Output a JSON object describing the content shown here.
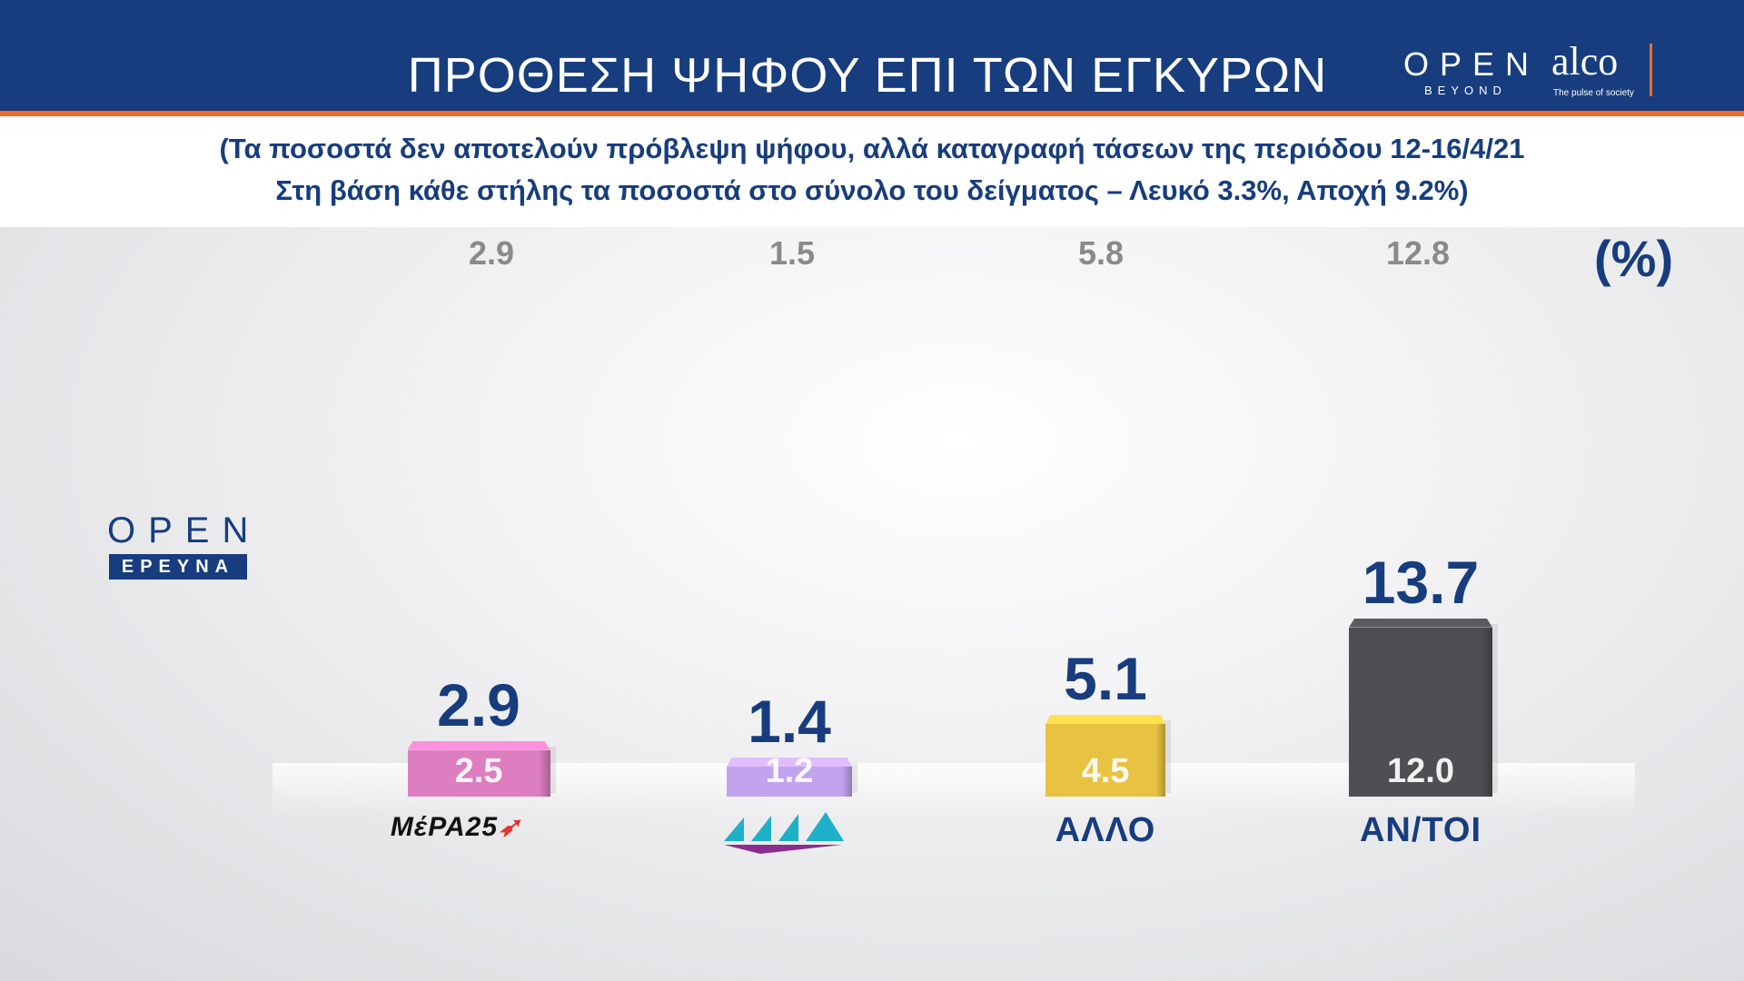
{
  "header": {
    "title": "ΠΡΟΘΕΣΗ ΨΗΦΟΥ ΕΠΙ ΤΩΝ ΕΓΚΥΡΩΝ",
    "brand_open": "OPEN",
    "brand_beyond": "BEYOND",
    "brand_alco": "alco",
    "brand_pulse": "The pulse of society"
  },
  "subtitle": {
    "line1": "(Τα ποσοστά δεν αποτελούν πρόβλεψη ψήφου, αλλά καταγραφή τάσεων της περιόδου 12-16/4/21",
    "line2": "Στη βάση κάθε στήλης τα ποσοστά στο σύνολο του δείγματος – Λευκό 3.3%, Αποχή 9.2%)"
  },
  "logo": {
    "open": "OPEN",
    "ereyna": "ΕΡΕΥΝΑ"
  },
  "colors": {
    "header": "#173d7e",
    "accent": "#f26b22",
    "text": "#173d7e"
  },
  "chart_data": {
    "type": "bar",
    "unit": "(%)",
    "categories": [
      "ΜέΡΑ25",
      "",
      "ΑΛΛΟ",
      "ΑΝ/ΤΟΙ"
    ],
    "category_logos": [
      "mera25-logo",
      "triangles-party-logo",
      "",
      ""
    ],
    "bar_colors": [
      "#dd7ec0",
      "#c2a4ee",
      "#e8c343",
      "#4d4f52"
    ],
    "top_row": [
      "2.9",
      "1.5",
      "5.8",
      "12.8"
    ],
    "series": [
      {
        "values": [
          2.9,
          1.4,
          5.1,
          13.7
        ],
        "labels": [
          "2.9",
          "1.4",
          "5.1",
          "13.7"
        ]
      },
      {
        "values": [
          2.5,
          1.2,
          4.5,
          12.0
        ],
        "labels": [
          "2.5",
          "1.2",
          "4.5",
          "12.0"
        ]
      }
    ]
  }
}
